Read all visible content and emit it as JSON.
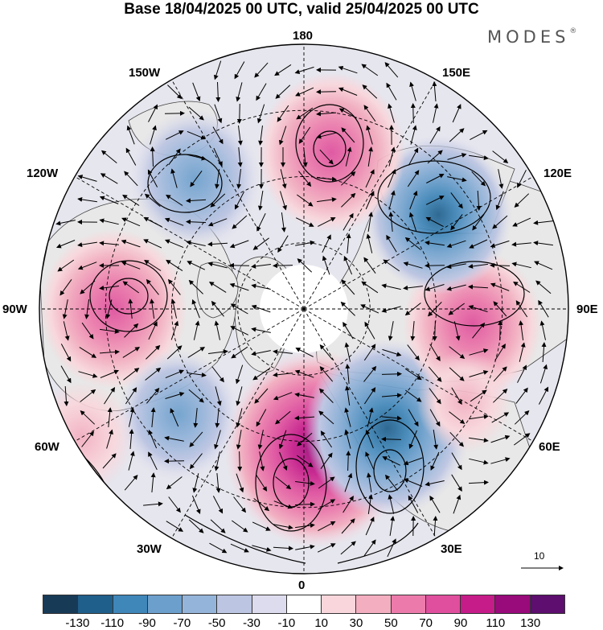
{
  "title": "Base 18/04/2025 00 UTC, valid 25/04/2025 00 UTC",
  "brand": "MODES",
  "brand_mark": "®",
  "longitude_labels": {
    "top": "180",
    "bottom": "0",
    "left": "90W",
    "right": "90E",
    "upper_left_1": "150W",
    "upper_left_2": "120W",
    "lower_left_1": "60W",
    "lower_left_2": "30W",
    "upper_right_1": "150E",
    "upper_right_2": "120E",
    "lower_right_1": "60E",
    "lower_right_2": "30E"
  },
  "reference_vector": {
    "value": "10"
  },
  "colorbar": {
    "ticks": [
      "-130",
      "-110",
      "-90",
      "-70",
      "-50",
      "-30",
      "-10",
      "10",
      "30",
      "50",
      "70",
      "90",
      "110",
      "130"
    ],
    "colors": [
      "#173a57",
      "#1f5f8b",
      "#3f86b9",
      "#6c9fcc",
      "#95b4d9",
      "#bcc5e2",
      "#dddcee",
      "#ffffff",
      "#f9d6db",
      "#f3aec0",
      "#ec7bab",
      "#df4f9d",
      "#c61c8a",
      "#990a7a",
      "#5d0e6e"
    ]
  },
  "map_data": {
    "projection": "north-polar-stereographic",
    "anomalies": [
      {
        "lon": 5,
        "r": 0.53,
        "value": 120
      },
      {
        "lon": 35,
        "r": 0.55,
        "value": -100
      },
      {
        "lon": 85,
        "r": 0.64,
        "value": 70
      },
      {
        "lon": 125,
        "r": 0.62,
        "value": -80
      },
      {
        "lon": 170,
        "r": 0.6,
        "value": 80
      },
      {
        "lon": -140,
        "r": 0.64,
        "value": -60
      },
      {
        "lon": -90,
        "r": 0.72,
        "value": 80
      },
      {
        "lon": -50,
        "r": 0.62,
        "value": -50
      },
      {
        "lon": -60,
        "r": 0.97,
        "value": 30
      },
      {
        "lon": 60,
        "r": 0.7,
        "value": 20
      }
    ]
  },
  "colors": {
    "land": "#e8e8e8",
    "coast": "#444444",
    "grid": "#000000"
  }
}
